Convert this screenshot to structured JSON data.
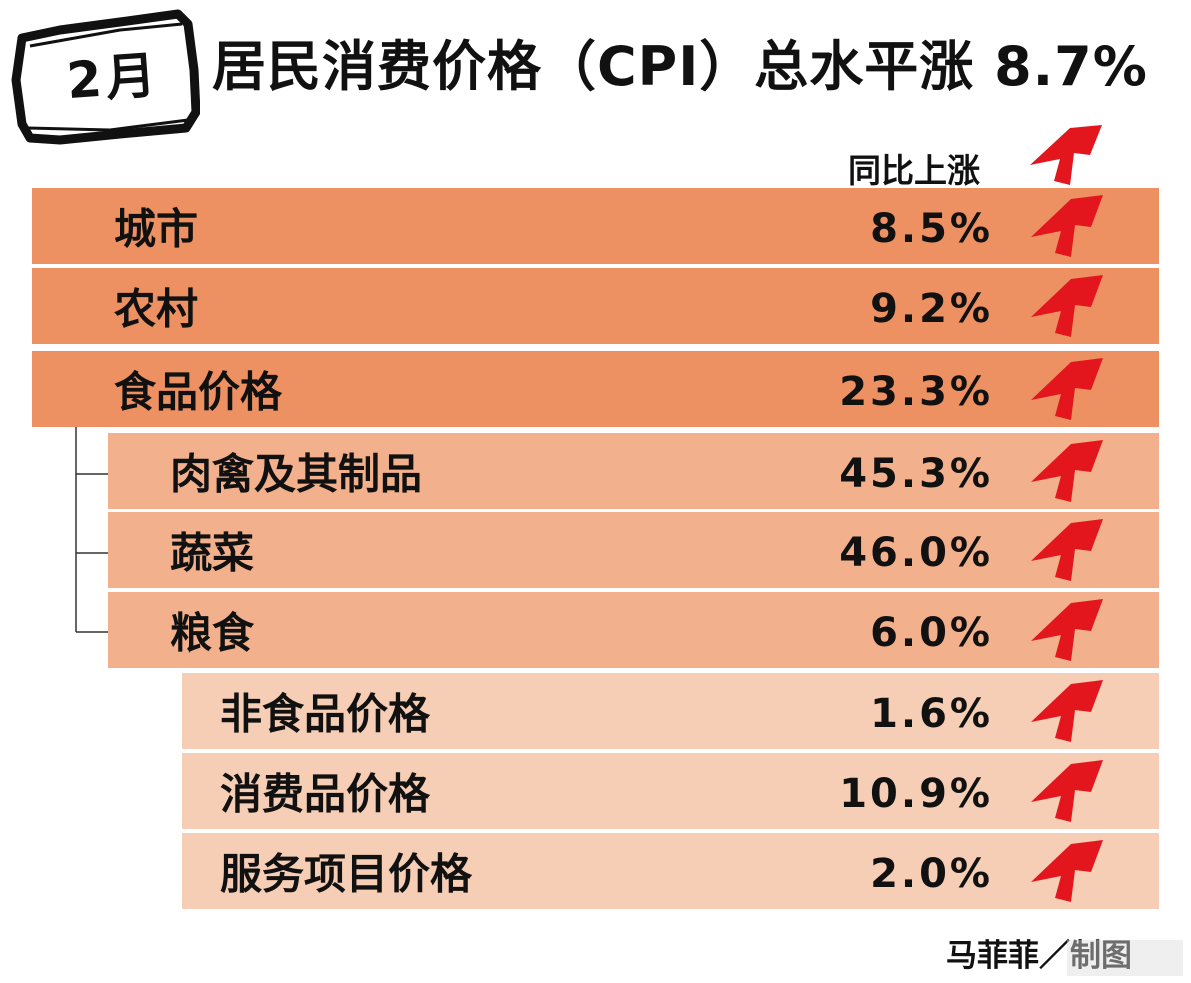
{
  "month_badge": "2月",
  "title": "居民消费价格（CPI）总水平涨 8.7%",
  "column_header": "同比上涨",
  "credit": "马菲菲／制图",
  "colors": {
    "level0_bar": "#ee9162",
    "level1_bar": "#f2b08c",
    "level2_bar": "#f6cdb5",
    "arrow": "#e3161d"
  },
  "icons": {
    "increase": "red-up-arrow-icon",
    "tree_node": "bullet-icon"
  },
  "chart_data": {
    "type": "table",
    "columns": [
      "",
      "同比上涨"
    ],
    "rows": [
      {
        "label": "城市",
        "value": "8.5%",
        "change": "up"
      },
      {
        "label": "农村",
        "value": "9.2%",
        "change": "up"
      },
      {
        "label": "食品价格",
        "value": "23.3%",
        "change": "up"
      },
      {
        "label": "肉禽及其制品",
        "value": "45.3%",
        "change": "up"
      },
      {
        "label": "蔬菜",
        "value": "46.0%",
        "change": "up"
      },
      {
        "label": "粮食",
        "value": "6.0%",
        "change": "up"
      },
      {
        "label": "非食品价格",
        "value": "1.6%",
        "change": "up"
      },
      {
        "label": "消费品价格",
        "value": "10.9%",
        "change": "up"
      },
      {
        "label": "服务项目价格",
        "value": "2.0%",
        "change": "up"
      }
    ]
  }
}
